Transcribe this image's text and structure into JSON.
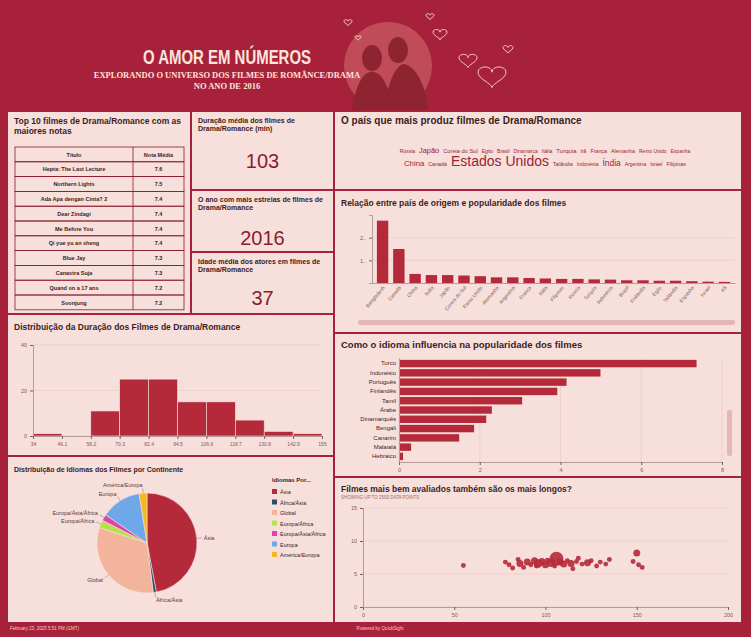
{
  "header": {
    "title": "O AMOR EM NÚMEROS",
    "subtitle": [
      "EXPLORANDO O UNIVERSO DOS FILMES DE ROMÂNCE/DRAMA",
      "NO ANO DE 2016"
    ]
  },
  "table": {
    "title": "Top 10 filmes de Drama/Romance com as maiores notas",
    "columns": [
      "Título",
      "Nota Média"
    ],
    "rows": [
      [
        "Hepta: The Last Lecture",
        7.6
      ],
      [
        "Northern Lights",
        7.5
      ],
      [
        "Ada Apa dengan Cinta? 2",
        7.4
      ],
      [
        "Dear Zindagi",
        7.4
      ],
      [
        "Me Before You",
        7.4
      ],
      [
        "Qi yue yu an sheng",
        7.4
      ],
      [
        "Blue Jay",
        7.3
      ],
      [
        "Canastra Suja",
        7.3
      ],
      [
        "Quand on a 17 ans",
        7.2
      ],
      [
        "Soonjung",
        7.2
      ]
    ]
  },
  "kpis": [
    {
      "title": "Duração média dos filmes de Drama/Romance (min)",
      "value": 103
    },
    {
      "title": "O ano com mais estreias de filmes de Drama/Romance",
      "value": 2016
    },
    {
      "title": "Idade média dos atores em filmes de Drama/Romance",
      "value": 37
    }
  ],
  "chart_data": [
    {
      "type": "wordcloud",
      "title": "O país que mais produz filmes de Drama/Romance",
      "categories": [
        "Rússia",
        "Japão",
        "Coreia do Sul",
        "Egito",
        "Brasil",
        "Dinamarca",
        "Itália",
        "Turquia",
        "Irã",
        "França",
        "Alemanha",
        "Reino Unido",
        "Espanha",
        "China",
        "Canadá",
        "Estados Unidos",
        "Tailândia",
        "Indonésia",
        "Índia",
        "Argentina",
        "Israel",
        "Filipinas"
      ],
      "values": [
        4,
        11,
        6,
        4,
        4,
        4,
        4,
        7,
        4,
        5,
        5,
        4,
        4,
        12,
        5,
        30,
        4,
        4,
        14,
        4,
        4,
        5
      ],
      "color": "#9b2335"
    },
    {
      "type": "bar",
      "title": "Relação entre país de origem e popularidade dos filmes",
      "categories": [
        "Bangladesh",
        "Canadá",
        "China",
        "Índia",
        "Japão",
        "Coreia do Sul",
        "Reino Unido",
        "Alemanha",
        "Argentina",
        "França",
        "Itália",
        "Filipinas",
        "Rússia",
        "Turquia",
        "Indonésia",
        "Brasil",
        "Finlândia",
        "Egito",
        "Tailândia",
        "Espanha",
        "Israel",
        "Irã"
      ],
      "values": [
        2.75,
        1.5,
        0.4,
        0.35,
        0.35,
        0.33,
        0.3,
        0.25,
        0.25,
        0.22,
        0.2,
        0.18,
        0.18,
        0.16,
        0.15,
        0.12,
        0.12,
        0.1,
        0.1,
        0.08,
        0.06,
        0.05
      ],
      "color": "#b52a3a",
      "ylim": [
        0,
        3
      ],
      "yticks": [
        {
          "value": 1,
          "label": "1.."
        },
        {
          "value": 2,
          "label": "2.."
        }
      ],
      "grid": true
    },
    {
      "type": "histogram",
      "title": "Distribuição da Duração dos Filmes de Drama/Romance",
      "bins": [
        34,
        46.1,
        58.2,
        70.3,
        82.4,
        94.5,
        106.6,
        118.7,
        130.8,
        142.9,
        155
      ],
      "values": [
        1,
        0,
        11,
        25,
        25,
        15,
        15,
        7,
        2,
        1
      ],
      "color": "#b52a3a",
      "xlim": [
        34,
        155
      ],
      "xticks": [
        34,
        46.1,
        58.2,
        70.3,
        82.4,
        94.5,
        106.6,
        118.7,
        130.8,
        142.9,
        155
      ],
      "ylim": [
        0,
        40
      ],
      "yticks": [
        0,
        20,
        40
      ],
      "grid": true
    },
    {
      "type": "bar",
      "orientation": "horizontal",
      "title": "Como o idioma influencia na popularidade dos filmes",
      "categories": [
        "Turco",
        "Indonésio",
        "Português",
        "Finlandês",
        "Tamil",
        "Árabe",
        "Dinamarquês",
        "Bengali",
        "Canarim",
        "Malaialá",
        "Hebraico"
      ],
      "values": [
        7.37,
        4.99,
        4.15,
        3.92,
        3.05,
        2.3,
        2.16,
        1.86,
        1.49,
        0.3,
        0.1
      ],
      "color": "#b52a3a",
      "xlim": [
        0,
        8
      ],
      "xticks": [
        0,
        2,
        4,
        6,
        8
      ],
      "grid": true
    },
    {
      "type": "pie",
      "title": "Distribuição de Idiomas dos Filmes por Continente",
      "legend_title": "Idiomas Por...",
      "categories": [
        "Ásia",
        "África/Ásia",
        "Global",
        "Europa/África",
        "Europa/Ásia/África",
        "Europa",
        "América/Europa"
      ],
      "values": [
        47,
        1,
        32,
        2.5,
        2,
        13,
        2.5
      ],
      "colors": [
        "#b52a3a",
        "#2f4b6e",
        "#f2b49a",
        "#b7e04a",
        "#e040b0",
        "#6fa8e8",
        "#f5b820"
      ],
      "legend": "right"
    },
    {
      "type": "scatter",
      "title": "Filmes mais bem avaliados também são os mais longos?",
      "subtitle": "SHOWING UP TO 2500 DATA POINTS",
      "x": [
        55,
        78,
        80,
        82,
        85,
        86,
        88,
        90,
        92,
        94,
        95,
        96,
        98,
        100,
        101,
        103,
        105,
        106,
        108,
        110,
        112,
        114,
        115,
        117,
        118,
        120,
        123,
        125,
        128,
        130,
        133,
        135,
        148,
        150,
        151,
        153
      ],
      "values": [
        6.3,
        6.8,
        6.4,
        5.9,
        7.2,
        6.6,
        6.0,
        6.8,
        6.4,
        7.0,
        6.2,
        6.6,
        6.9,
        6.4,
        7.1,
        6.7,
        6.2,
        7.3,
        6.8,
        6.5,
        7.0,
        6.6,
        5.8,
        6.9,
        7.4,
        6.5,
        6.7,
        7.0,
        6.2,
        6.8,
        6.5,
        7.2,
        6.9,
        8.2,
        6.4,
        6.0
      ],
      "sizes": [
        1,
        1,
        1,
        1,
        1,
        2,
        1,
        2,
        1,
        2,
        1,
        3,
        2,
        2,
        1,
        3,
        1,
        8,
        2,
        2,
        1,
        2,
        1,
        1,
        1,
        1,
        2,
        1,
        1,
        1,
        1,
        1,
        1,
        2,
        1,
        1
      ],
      "color": "#b52a3a",
      "xlim": [
        0,
        200
      ],
      "xticks": [
        0,
        50,
        100,
        150,
        200
      ],
      "ylim": [
        0,
        15
      ],
      "yticks": [
        0,
        5,
        10,
        15
      ],
      "grid": true
    }
  ],
  "footer": {
    "timestamp": "February 23, 2025 5:51 PM (GMT)",
    "credit": "Powered by QuickSight"
  }
}
